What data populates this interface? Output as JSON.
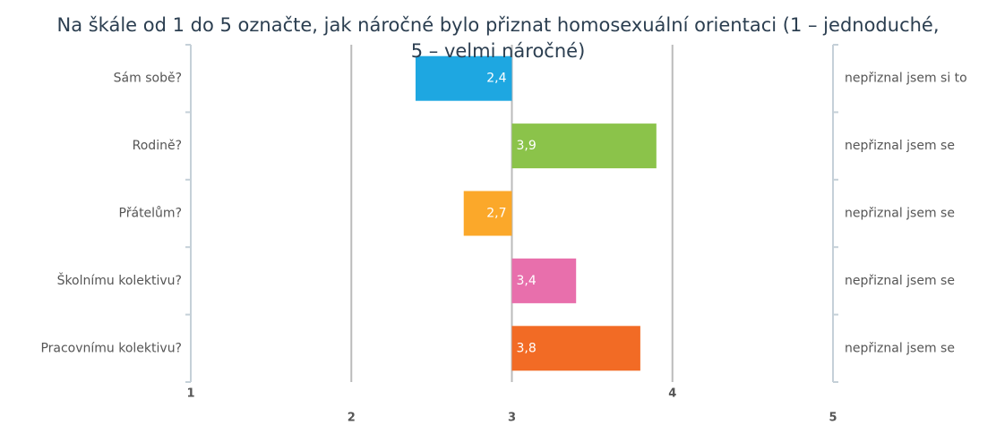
{
  "chart_data": {
    "type": "bar",
    "orientation": "horizontal",
    "title": "Na škále od 1 do 5 označte, jak náročné bylo přiznat homosexuální orientaci (1 – jednoduché, 5 – velmi náročné)",
    "categories": [
      "Sám sobě?",
      "Rodině?",
      "Přátelům?",
      "Školnímu kolektivu?",
      "Pracovnímu kolektivu?"
    ],
    "values": [
      2.4,
      3.9,
      2.7,
      3.4,
      3.8
    ],
    "value_labels": [
      "2,4",
      "3,9",
      "2,7",
      "3,4",
      "3,8"
    ],
    "colors": [
      "#1ea7e1",
      "#8bc34a",
      "#fba82a",
      "#e86fac",
      "#f26b25"
    ],
    "right_labels": [
      "nepřiznal jsem si to",
      "nepřiznal jsem se",
      "nepřiznal jsem se",
      "nepřiznal jsem se",
      "nepřiznal jsem se"
    ],
    "origin": 3,
    "xlim": [
      1,
      5
    ],
    "xticks": [
      1,
      2,
      3,
      4,
      5
    ],
    "grid": true
  }
}
